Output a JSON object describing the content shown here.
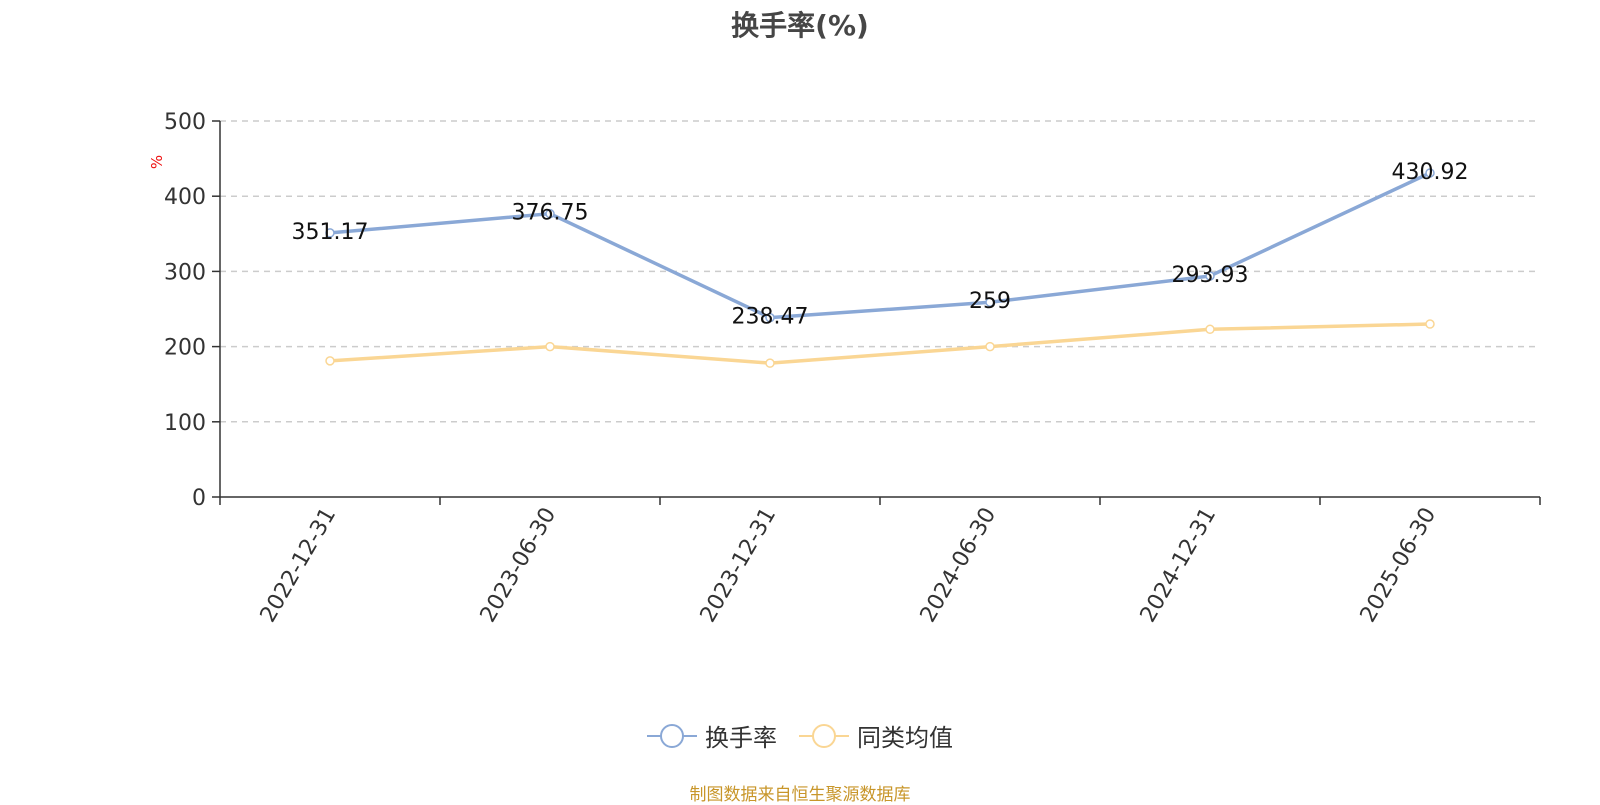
{
  "chart_data": {
    "type": "line",
    "title": "换手率(%)",
    "ylabel": "%",
    "ylim": [
      0,
      500
    ],
    "yticks": [
      "0",
      "100",
      "200",
      "300",
      "400",
      "500"
    ],
    "categories": [
      "2022-12-31",
      "2023-06-30",
      "2023-12-31",
      "2024-06-30",
      "2024-12-31",
      "2025-06-30"
    ],
    "grid": true,
    "legend_position": "bottom",
    "series": [
      {
        "name": "换手率",
        "values": [
          351.17,
          376.75,
          238.47,
          259,
          293.93,
          430.92
        ],
        "labels": [
          "351.17",
          "376.75",
          "238.47",
          "259",
          "293.93",
          "430.92"
        ],
        "color": "#8aa8d6"
      },
      {
        "name": "同类均值",
        "values": [
          181,
          200,
          178,
          200,
          223,
          230
        ],
        "color": "#fad694"
      }
    ]
  },
  "source_note": "制图数据来自恒生聚源数据库",
  "colors": {
    "axis": "#333333",
    "grid": "#cccccc",
    "ylabel": "#ee1111"
  }
}
